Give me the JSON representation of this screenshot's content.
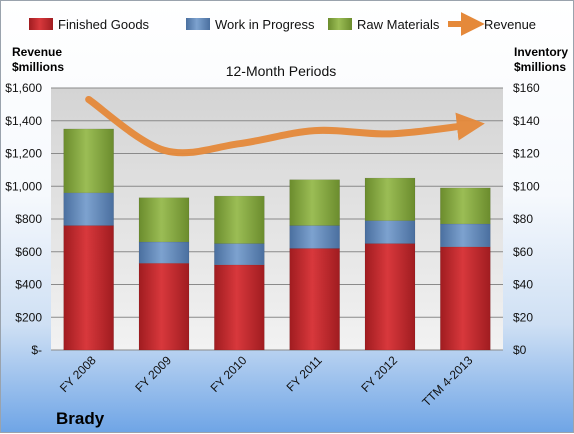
{
  "chart_data": {
    "type": "bar",
    "stacked": true,
    "subtitle": "12-Month Periods",
    "company": "Brady",
    "categories": [
      "FY 2008",
      "FY 2009",
      "FY 2010",
      "FY 2011",
      "FY 2012",
      "TTM 4-2013"
    ],
    "series": [
      {
        "name": "Finished Goods",
        "axis": "right",
        "color": "#c0262a",
        "values": [
          76,
          53,
          52,
          62,
          65,
          63
        ]
      },
      {
        "name": "Work in Progress",
        "axis": "right",
        "color": "#5b84b8",
        "values": [
          20,
          13,
          13,
          14,
          14,
          14
        ]
      },
      {
        "name": "Raw Materials",
        "axis": "right",
        "color": "#7fa33a",
        "values": [
          39,
          27,
          29,
          28,
          26,
          22
        ]
      },
      {
        "name": "Revenue",
        "axis": "left",
        "type": "line",
        "color": "#e5893a",
        "values": [
          1530,
          1220,
          1260,
          1340,
          1320,
          1370
        ]
      }
    ],
    "y_left": {
      "label_line1": "Revenue",
      "label_line2": "$millions",
      "lim": [
        0,
        1600
      ],
      "ticks": [
        "$-",
        "$200",
        "$400",
        "$600",
        "$800",
        "$1,000",
        "$1,200",
        "$1,400",
        "$1,600"
      ]
    },
    "y_right": {
      "label_line1": "Inventory",
      "label_line2": "$millions",
      "lim": [
        0,
        160
      ],
      "ticks": [
        "$0",
        "$20",
        "$40",
        "$60",
        "$80",
        "$100",
        "$120",
        "$140",
        "$160"
      ]
    },
    "grid": true,
    "legend_position": "top"
  }
}
